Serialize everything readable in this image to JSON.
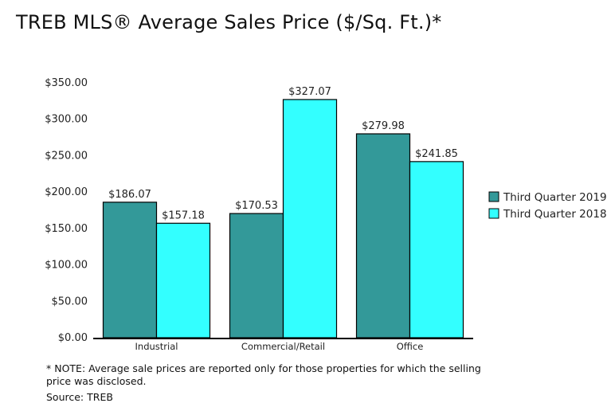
{
  "title": "TREB MLS® Average Sales Price ($/Sq. Ft.)*",
  "note": "* NOTE: Average sale prices are reported only for those properties for which the selling price was disclosed.",
  "source": "Source: TREB",
  "chart_data": {
    "type": "bar",
    "title": "TREB MLS® Average Sales Price ($/Sq. Ft.)*",
    "xlabel": "",
    "ylabel": "",
    "categories": [
      "Industrial",
      "Commercial/Retail",
      "Office"
    ],
    "series": [
      {
        "name": "Third Quarter 2019",
        "values": [
          186.07,
          170.53,
          279.98
        ],
        "color": "#339999"
      },
      {
        "name": "Third Quarter 2018",
        "values": [
          157.18,
          327.07,
          241.85
        ],
        "color": "#33ffff"
      }
    ],
    "data_labels": [
      [
        "$186.07",
        "$170.53",
        "$279.98"
      ],
      [
        "$157.18",
        "$327.07",
        "$241.85"
      ]
    ],
    "ylim": [
      0,
      350
    ],
    "yticks": [
      0,
      50,
      100,
      150,
      200,
      250,
      300,
      350
    ],
    "ytick_labels": [
      "$0.00",
      "$50.00",
      "$100.00",
      "$150.00",
      "$200.00",
      "$250.00",
      "$300.00",
      "$350.00"
    ],
    "grid": false,
    "legend_position": "right"
  }
}
